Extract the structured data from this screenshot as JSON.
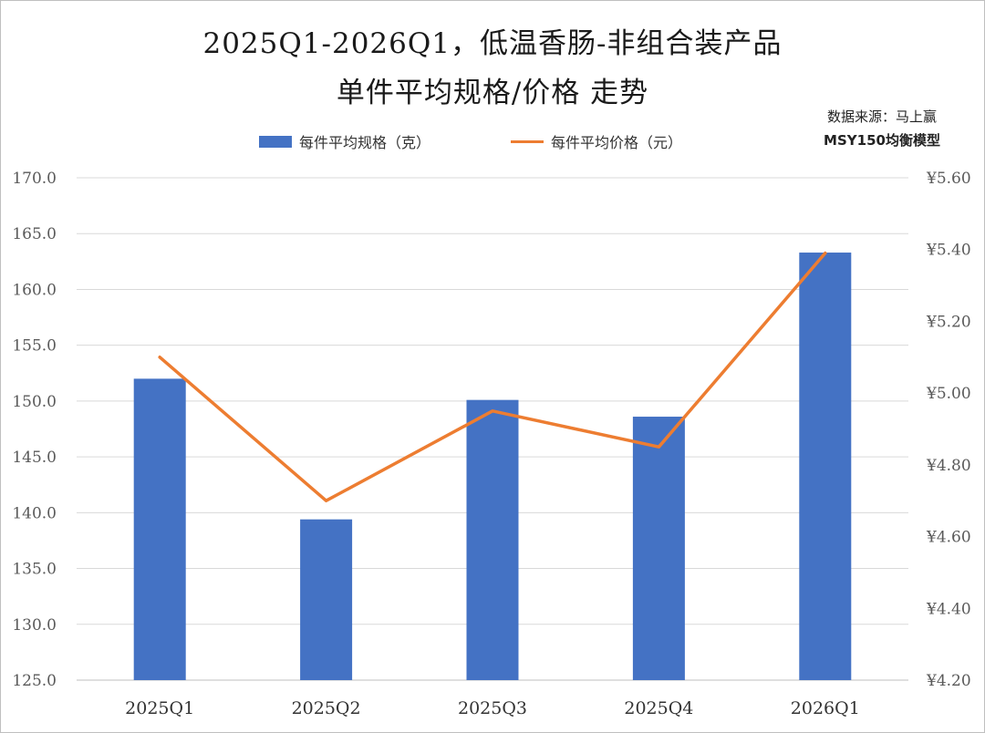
{
  "title_line1": "2025Q1-2026Q1，低温香肠-非组合装产品",
  "title_line2": "单件平均规格/价格 走势",
  "source_line1": "数据来源：马上赢",
  "source_line2": "MSY150均衡模型",
  "colors": {
    "bar": "#4472c4",
    "line": "#ed7d31",
    "grid": "#d9d9d9"
  },
  "chart_data": {
    "type": "bar",
    "categories": [
      "2025Q1",
      "2025Q2",
      "2025Q3",
      "2025Q4",
      "2026Q1"
    ],
    "series": [
      {
        "name": "每件平均规格（克）",
        "type": "bar",
        "axis": "left",
        "values": [
          152.0,
          139.4,
          150.1,
          148.6,
          163.3
        ]
      },
      {
        "name": "每件平均价格（元）",
        "type": "line",
        "axis": "right",
        "values": [
          5.1,
          4.7,
          4.95,
          4.85,
          5.39
        ]
      }
    ],
    "y_left": {
      "range": [
        125,
        170
      ],
      "ticks": [
        "125.0",
        "130.0",
        "135.0",
        "140.0",
        "145.0",
        "150.0",
        "155.0",
        "160.0",
        "165.0",
        "170.0"
      ]
    },
    "y_right": {
      "range": [
        4.2,
        5.6
      ],
      "ticks": [
        "¥4.20",
        "¥4.40",
        "¥4.60",
        "¥4.80",
        "¥5.00",
        "¥5.20",
        "¥5.40",
        "¥5.60"
      ]
    },
    "grid": true,
    "legend_position": "top"
  }
}
